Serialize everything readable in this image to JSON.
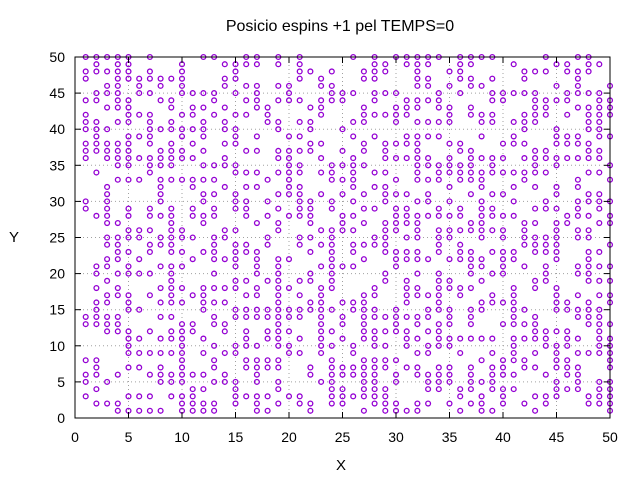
{
  "chart_data": {
    "type": "scatter",
    "title": "Posicio espins +1 pel TEMPS=0",
    "xlabel": "X",
    "ylabel": "Y",
    "xlim": [
      0,
      50
    ],
    "ylim": [
      0,
      50
    ],
    "xticks": [
      0,
      5,
      10,
      15,
      20,
      25,
      30,
      35,
      40,
      45,
      50
    ],
    "yticks": [
      0,
      5,
      10,
      15,
      20,
      25,
      30,
      35,
      40,
      45,
      50
    ],
    "grid": true,
    "grid_style": "dotted",
    "legend": "none",
    "marker": "open-circle",
    "marker_color": "#9400d3",
    "lattice": {
      "x_range": [
        1,
        50
      ],
      "y_range": [
        1,
        50
      ],
      "step": 1,
      "occupied_fraction": 0.5,
      "pattern_seed": 20240517
    }
  },
  "colors": {
    "points": "#9400d3",
    "grid": "#a0a0a0",
    "axes": "#000000"
  }
}
